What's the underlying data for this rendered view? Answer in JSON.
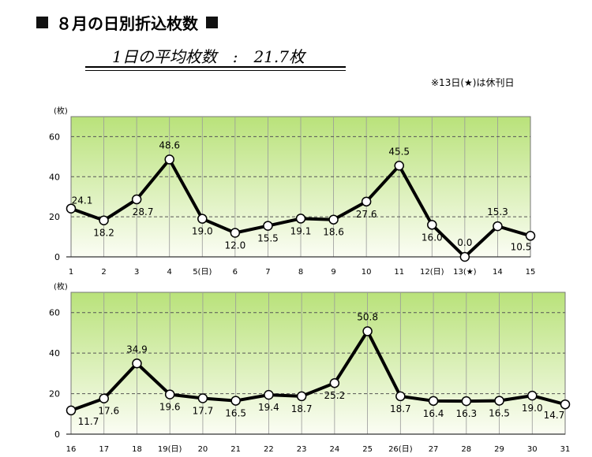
{
  "title": "８月の日別折込枚数",
  "average_label": "1日の平均枚数　:　21.7枚",
  "note": "※13日(★)は休刊日",
  "colors": {
    "line": "#000000",
    "grid": "#555555",
    "plot_top": "#b9e27a",
    "plot_bottom": "#fbfdf4"
  },
  "chart_data": [
    {
      "type": "line",
      "y_unit_label": "(枚)",
      "ylim": [
        0,
        70
      ],
      "yticks": [
        0,
        20,
        40,
        60
      ],
      "categories": [
        "1",
        "2",
        "3",
        "4",
        "5(日)",
        "6",
        "7",
        "8",
        "9",
        "10",
        "11",
        "12(日)",
        "13(★)",
        "14",
        "15"
      ],
      "values": [
        24.1,
        18.2,
        28.7,
        48.6,
        19.0,
        12.0,
        15.5,
        19.1,
        18.6,
        27.6,
        45.5,
        16.0,
        0.0,
        15.3,
        10.5
      ],
      "data_labels": [
        "24.1",
        "18.2",
        "28.7",
        "48.6",
        "19.0",
        "12.0",
        "15.5",
        "19.1",
        "18.6",
        "27.6",
        "45.5",
        "16.0",
        "0.0",
        "15.3",
        "10.5"
      ],
      "grid": true
    },
    {
      "type": "line",
      "y_unit_label": "(枚)",
      "ylim": [
        0,
        70
      ],
      "yticks": [
        0,
        20,
        40,
        60
      ],
      "categories": [
        "16",
        "17",
        "18",
        "19(日)",
        "20",
        "21",
        "22",
        "23",
        "24",
        "25",
        "26(日)",
        "27",
        "28",
        "29",
        "30",
        "31"
      ],
      "values": [
        11.7,
        17.6,
        34.9,
        19.6,
        17.7,
        16.5,
        19.4,
        18.7,
        25.2,
        50.8,
        18.7,
        16.4,
        16.3,
        16.5,
        19.0,
        14.7
      ],
      "data_labels": [
        "",
        "17.6",
        "34.9",
        "19.6",
        "17.7",
        "16.5",
        "19.4",
        "18.7",
        "25.2",
        "50.8",
        "18.7",
        "16.4",
        "16.3",
        "16.5",
        "19.0",
        "14.7"
      ],
      "grid": true
    }
  ]
}
